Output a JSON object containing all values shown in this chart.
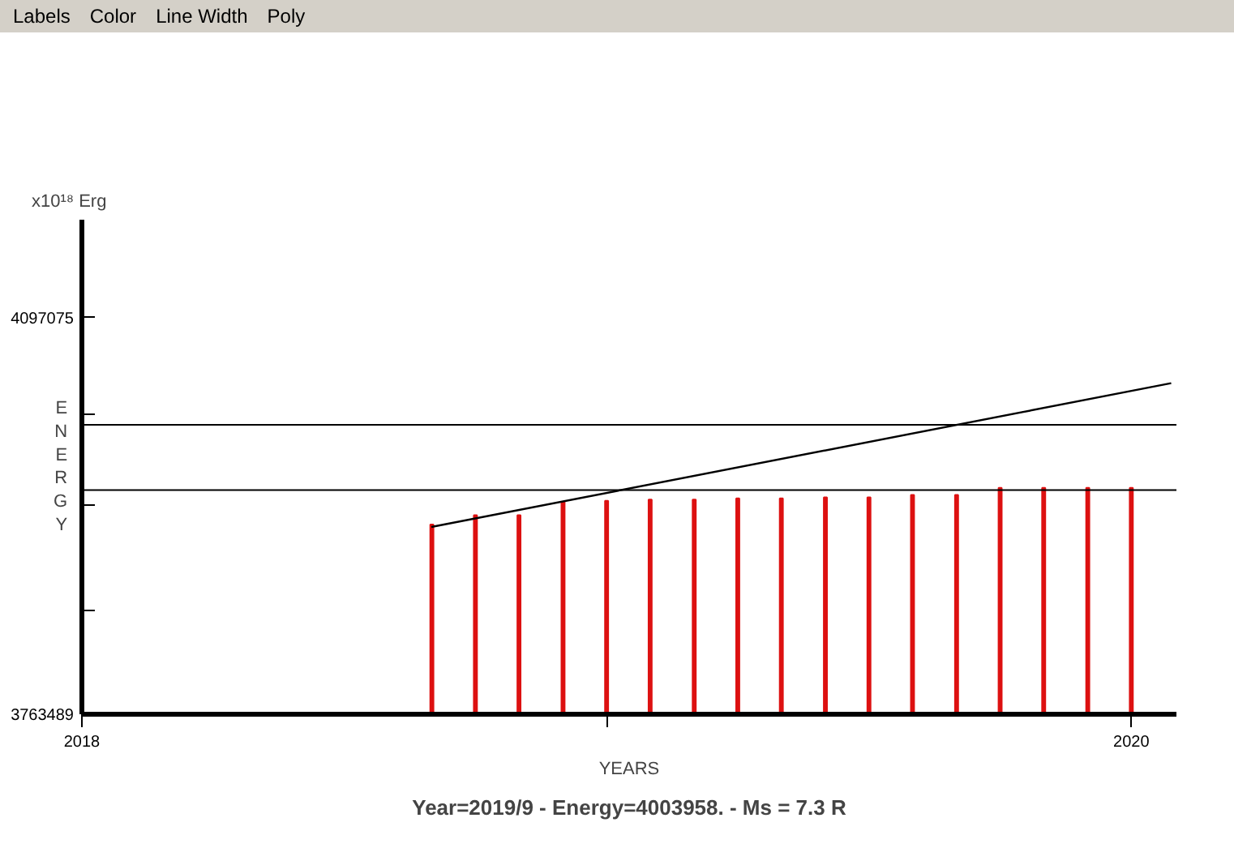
{
  "chart_data": {
    "type": "bar",
    "xlabel": "YEARS",
    "ylabel": "ENERGY",
    "annotations": [
      "Labels",
      "Color",
      "Line Width",
      "Poly",
      "x10¹⁸ Erg",
      "Year=2019/9 - Energy=4003958. - Ms = 7.3 R"
    ],
    "x": [
      2018.667,
      2018.75,
      2018.833,
      2018.917,
      2019.0,
      2019.083,
      2019.167,
      2019.25,
      2019.333,
      2019.417,
      2019.5,
      2019.583,
      2019.667,
      2019.75,
      2019.833,
      2019.917,
      2020.0
    ],
    "series": [
      {
        "color": "#dd1111",
        "values": [
          3923000,
          3931000,
          3931000,
          3942000,
          3943000,
          3944000,
          3944000,
          3945000,
          3945000,
          3946000,
          3946000,
          3948000,
          3948000,
          3954000,
          3954000,
          3954000,
          3954000
        ]
      },
      {
        "type": "line",
        "color": "#000000",
        "x": [
          2018.666,
          2020.076
        ],
        "values": [
          3921000,
          4042000
        ]
      }
    ],
    "xlim": [
      2018,
      2020.086
    ],
    "xticks": [
      2018,
      {
        "value": 2019,
        "label": null
      },
      2020
    ],
    "ylim": [
      3763489,
      4179500
    ],
    "yticks": [
      3763489,
      {
        "value": 3851000,
        "label": null
      },
      {
        "value": 3939000,
        "label": null
      },
      {
        "value": 4016000,
        "label": null
      },
      4097075
    ],
    "ref_lines": [
      {
        "axis": "y",
        "value": 4007000,
        "color": "#000000"
      },
      {
        "axis": "y",
        "value": 3952000,
        "color": "#000000"
      }
    ],
    "grid": false
  }
}
